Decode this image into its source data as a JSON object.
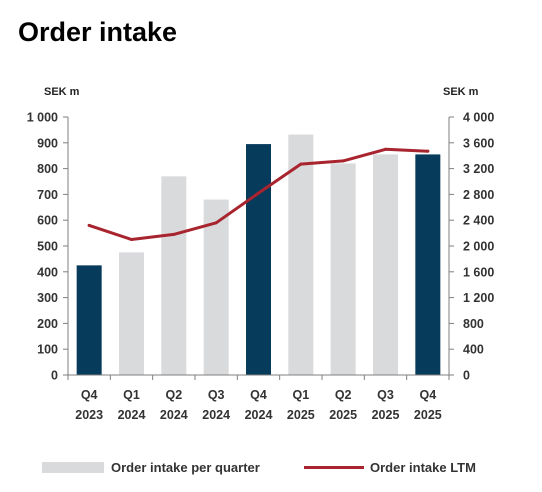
{
  "chart_data": {
    "type": "bar",
    "title": "Order intake",
    "left_axis": {
      "unit": "SEK m",
      "ylim": [
        0,
        1000
      ],
      "ticks": [
        0,
        100,
        200,
        300,
        400,
        500,
        600,
        700,
        800,
        900,
        1000
      ],
      "tick_labels": [
        "0",
        "100",
        "200",
        "300",
        "400",
        "500",
        "600",
        "700",
        "800",
        "900",
        "1 000"
      ]
    },
    "right_axis": {
      "unit": "SEK m",
      "ylim": [
        0,
        4000
      ],
      "ticks": [
        0,
        400,
        800,
        1200,
        1600,
        2000,
        2400,
        2800,
        3200,
        3600,
        4000
      ],
      "tick_labels": [
        "0",
        "400",
        "800",
        "1 200",
        "1 600",
        "2 000",
        "2 400",
        "2 800",
        "3 200",
        "3 600",
        "4 000"
      ]
    },
    "categories": [
      {
        "quarter": "Q4",
        "year": "2023"
      },
      {
        "quarter": "Q1",
        "year": "2024"
      },
      {
        "quarter": "Q2",
        "year": "2024"
      },
      {
        "quarter": "Q3",
        "year": "2024"
      },
      {
        "quarter": "Q4",
        "year": "2024"
      },
      {
        "quarter": "Q1",
        "year": "2025"
      },
      {
        "quarter": "Q2",
        "year": "2025"
      },
      {
        "quarter": "Q3",
        "year": "2025"
      },
      {
        "quarter": "Q4",
        "year": "2025"
      }
    ],
    "series": [
      {
        "name": "Order intake per quarter",
        "type": "bar",
        "axis": "left",
        "color": "#d9dadb",
        "highlight_color": "#073b5c",
        "highlighted": [
          true,
          false,
          false,
          false,
          true,
          false,
          false,
          false,
          true
        ],
        "values": [
          425,
          475,
          770,
          680,
          895,
          932,
          820,
          855,
          855
        ]
      },
      {
        "name": "Order intake LTM",
        "type": "line",
        "axis": "right",
        "color": "#a8242e",
        "values": [
          2320,
          2100,
          2180,
          2360,
          2820,
          3270,
          3320,
          3500,
          3470
        ]
      }
    ],
    "grid": false,
    "legend": "bottom"
  }
}
